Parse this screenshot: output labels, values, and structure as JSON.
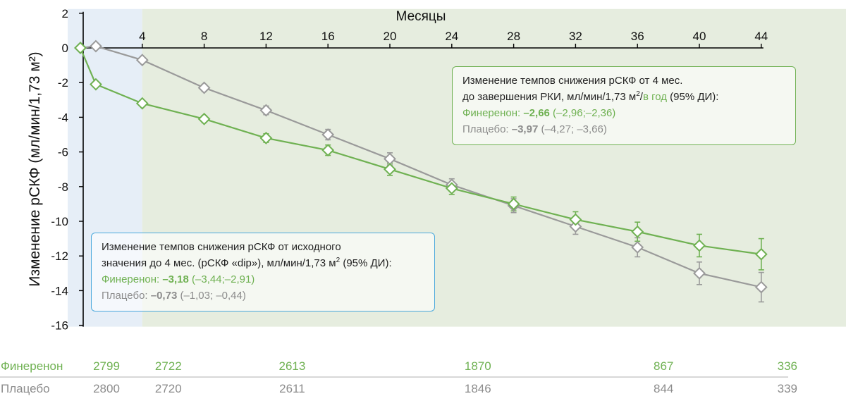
{
  "chart_data": {
    "type": "line",
    "title": "",
    "xlabel": "Месяцы",
    "ylabel": "Изменение рСКФ (мл/мин/1,73 м²)",
    "xlim": [
      -1,
      44
    ],
    "ylim": [
      -16,
      2
    ],
    "x_ticks": [
      4,
      8,
      12,
      16,
      20,
      24,
      28,
      32,
      36,
      40,
      44
    ],
    "y_ticks": [
      2,
      0,
      -2,
      -4,
      -6,
      -8,
      -10,
      -12,
      -14,
      -16
    ],
    "colors": {
      "finerenone": "#6fb152",
      "placebo": "#9a9a9a",
      "bg_blue": "#e6eef7",
      "bg_green": "#e6eddf"
    },
    "series": [
      {
        "name": "Финеренон",
        "color": "#6fb152",
        "x": [
          0,
          1,
          4,
          8,
          12,
          16,
          20,
          24,
          28,
          32,
          36,
          40,
          44
        ],
        "y": [
          0,
          -2.1,
          -3.2,
          -4.1,
          -5.2,
          -5.9,
          -7.0,
          -8.1,
          -9.0,
          -9.9,
          -10.6,
          -11.4,
          -11.9
        ],
        "err": [
          0,
          0.15,
          0.15,
          0.2,
          0.25,
          0.3,
          0.35,
          0.35,
          0.4,
          0.45,
          0.55,
          0.65,
          0.9
        ]
      },
      {
        "name": "Плацебо",
        "color": "#9a9a9a",
        "x": [
          0,
          1,
          4,
          8,
          12,
          16,
          20,
          24,
          28,
          32,
          36,
          40,
          44
        ],
        "y": [
          0,
          0.1,
          -0.7,
          -2.3,
          -3.6,
          -5.0,
          -6.4,
          -7.9,
          -9.1,
          -10.3,
          -11.5,
          -13.0,
          -13.8
        ],
        "err": [
          0,
          0.1,
          0.15,
          0.2,
          0.25,
          0.3,
          0.35,
          0.35,
          0.4,
          0.45,
          0.55,
          0.65,
          0.85
        ]
      }
    ],
    "at_risk": {
      "x": [
        0,
        4,
        12,
        24,
        36,
        44
      ],
      "rows": [
        {
          "label": "Финеренон",
          "values": [
            "2799",
            "2722",
            "2613",
            "1870",
            "867",
            "336"
          ]
        },
        {
          "label": "Плацебо",
          "values": [
            "2800",
            "2720",
            "2611",
            "1846",
            "844",
            "339"
          ]
        }
      ]
    }
  },
  "annotations": {
    "top": {
      "line1": "Изменение темпов снижения рСКФ от 4 мес.",
      "line2_a": "до завершения РКИ, мл/мин/1,73 м",
      "line2_sup": "2",
      "line2_b": "/",
      "line2_c": "в год",
      "line2_d": " (95% ДИ):",
      "fin_label": "Финеренон: ",
      "fin_value": "–2,66",
      "fin_ci": " (–2,96;–2,36)",
      "pla_label": "Плацебо: ",
      "pla_value": "–3,97",
      "pla_ci": " (–4,27; –3,66)"
    },
    "bottom": {
      "line1": "Изменение темпов снижения рСКФ от исходного",
      "line2_a": "значения до 4 мес. (рСКФ «dip»), мл/мин/1,73 м",
      "line2_sup": "2",
      "line2_d": " (95% ДИ):",
      "fin_label": "Финеренон: ",
      "fin_value": "–3,18",
      "fin_ci": " (–3,44;–2,91)",
      "pla_label": "Плацебо: ",
      "pla_value": "–0,73",
      "pla_ci": " (–1,03; –0,44)"
    }
  }
}
